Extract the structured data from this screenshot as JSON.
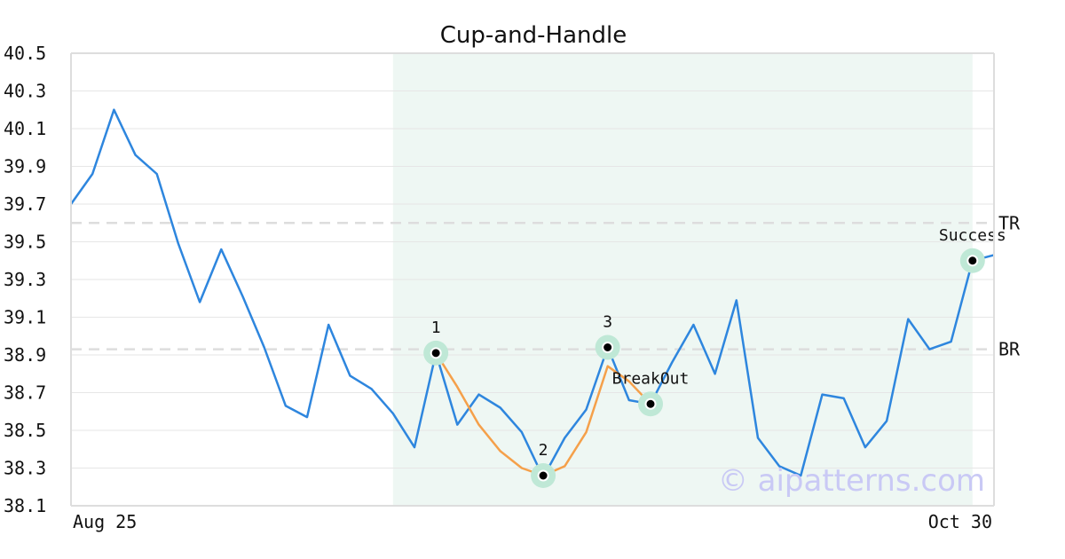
{
  "chart_data": {
    "type": "line",
    "title": "Cup-and-Handle",
    "ylim": [
      38.1,
      40.5
    ],
    "yticks": [
      "40.5",
      "40.3",
      "40.1",
      "39.9",
      "39.7",
      "39.5",
      "39.3",
      "39.1",
      "38.9",
      "38.7",
      "38.5",
      "38.3",
      "38.1"
    ],
    "xtick_labels": [
      "Aug 25",
      "Oct 30"
    ],
    "grid": true,
    "pattern_region": {
      "start_index": 15,
      "end_index": 42
    },
    "series": [
      {
        "color": "#2e86de",
        "values": [
          39.7,
          39.86,
          40.2,
          39.96,
          39.86,
          39.49,
          39.18,
          39.46,
          39.21,
          38.94,
          38.63,
          38.57,
          39.06,
          38.79,
          38.72,
          38.59,
          38.41,
          38.91,
          38.53,
          38.69,
          38.62,
          38.49,
          38.25,
          38.46,
          38.61,
          38.94,
          38.66,
          38.64,
          38.86,
          39.06,
          38.8,
          39.19,
          38.46,
          38.31,
          38.26,
          38.69,
          38.67,
          38.41,
          38.55,
          39.09,
          38.93,
          38.97,
          39.4,
          39.43
        ]
      },
      {
        "color": "#f5a04a",
        "x_indices": [
          17,
          18,
          19,
          20,
          21,
          22,
          23,
          24,
          25,
          26,
          27
        ],
        "values": [
          38.91,
          38.73,
          38.53,
          38.39,
          38.3,
          38.26,
          38.31,
          38.49,
          38.84,
          38.76,
          38.64
        ]
      }
    ],
    "levels": [
      {
        "label": "TR",
        "value": 39.6
      },
      {
        "label": "BR",
        "value": 38.93
      }
    ],
    "points": [
      {
        "label": "1",
        "index": 17,
        "value": 38.91,
        "label_pos": "above"
      },
      {
        "label": "2",
        "index": 22,
        "value": 38.26,
        "label_pos": "above"
      },
      {
        "label": "3",
        "index": 25,
        "value": 38.94,
        "label_pos": "above"
      },
      {
        "label": "BreakOut",
        "index": 27,
        "value": 38.64,
        "label_pos": "above"
      },
      {
        "label": "Success",
        "index": 42,
        "value": 39.4,
        "label_pos": "above"
      }
    ],
    "colors": {
      "highlight": "#eef7f3",
      "marker_halo": "#bfe8d6",
      "level_line": "#dddddd"
    },
    "watermark": "© aipatterns.com"
  }
}
